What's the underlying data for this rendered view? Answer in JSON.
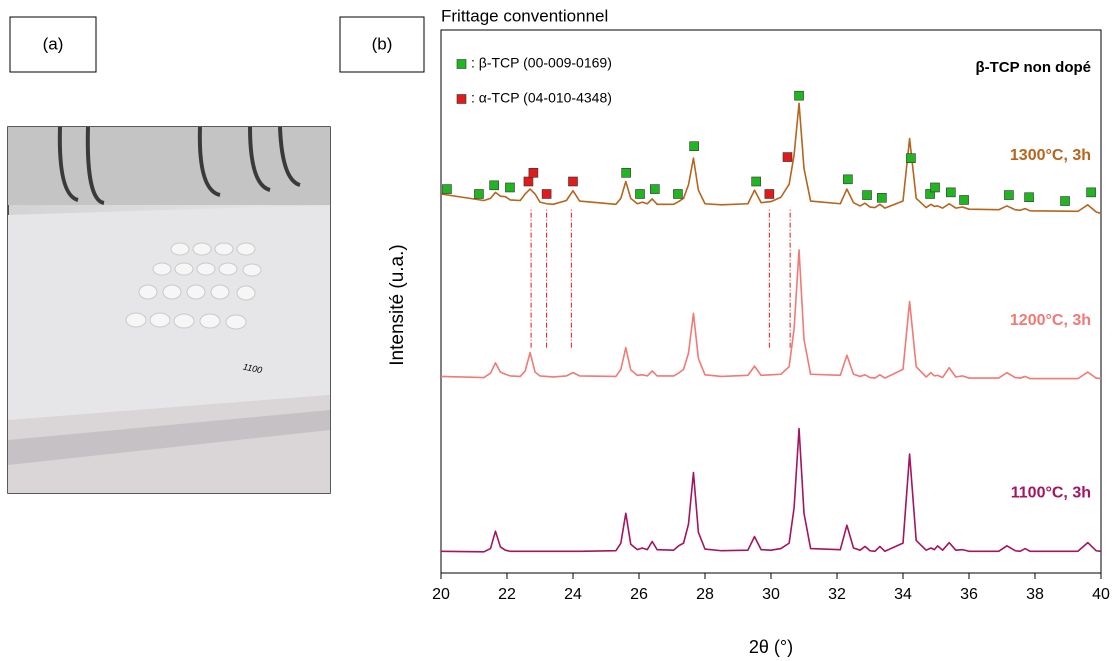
{
  "panel_a": {
    "label": "(a)",
    "marking": "1100"
  },
  "panel_b": {
    "label": "(b)"
  },
  "chart_data": {
    "type": "line",
    "title": "Frittage conventionnel",
    "annotation": "β-TCP non dopé",
    "x_label": "2θ (°)",
    "y_label": "Intensité (u.a.)",
    "xlim": [
      20,
      40
    ],
    "xticks": [
      20,
      22,
      24,
      26,
      28,
      30,
      32,
      34,
      36,
      38,
      40
    ],
    "ylim": [
      0,
      100
    ],
    "x": [
      20,
      21.3,
      21.5,
      21.65,
      21.8,
      21.95,
      22.1,
      22.4,
      22.55,
      22.7,
      22.85,
      23.0,
      23.2,
      23.4,
      23.8,
      24.0,
      24.2,
      25.3,
      25.45,
      25.6,
      25.75,
      25.95,
      26.1,
      26.25,
      26.4,
      26.55,
      27.05,
      27.2,
      27.35,
      27.5,
      27.65,
      27.8,
      28.0,
      28.5,
      29.3,
      29.5,
      29.7,
      30.0,
      30.3,
      30.55,
      30.7,
      30.85,
      31.0,
      31.2,
      32.1,
      32.3,
      32.5,
      32.7,
      32.85,
      33.0,
      33.15,
      33.3,
      33.45,
      34.0,
      34.2,
      34.4,
      34.7,
      34.85,
      34.95,
      35.05,
      35.2,
      35.4,
      35.6,
      35.8,
      36.0,
      36.9,
      37.15,
      37.4,
      37.55,
      37.7,
      37.85,
      39.3,
      39.6,
      39.85,
      40
    ],
    "series": [
      {
        "name": "1300°C, 3h",
        "color": "#b5651d",
        "values": [
          69.8,
          68.6,
          69.0,
          70.1,
          69.4,
          69.3,
          68.7,
          68.6,
          69.8,
          70.7,
          69.8,
          68.3,
          68.0,
          67.9,
          68.6,
          70.4,
          68.5,
          67.9,
          69.0,
          72.1,
          69.0,
          68.0,
          68.3,
          68.0,
          68.9,
          67.9,
          67.9,
          68.4,
          69.0,
          71.5,
          76.4,
          70.5,
          68.0,
          67.8,
          68.0,
          70.5,
          68.2,
          68.4,
          69.2,
          71.6,
          77.0,
          86.5,
          74.5,
          68.5,
          68.0,
          70.7,
          68.2,
          67.6,
          68.1,
          67.4,
          67.3,
          67.9,
          67.2,
          68.5,
          80.0,
          69.0,
          67.3,
          67.9,
          67.5,
          67.6,
          67.2,
          68.0,
          67.2,
          67.4,
          67.0,
          66.9,
          67.6,
          66.9,
          66.8,
          67.1,
          66.7,
          66.6,
          67.8,
          66.5,
          66.2
        ]
      },
      {
        "name": "1200°C, 3h",
        "color": "#f07a76",
        "values": [
          36.2,
          36.0,
          36.8,
          38.7,
          37.0,
          36.6,
          36.3,
          36.2,
          37.2,
          40.6,
          37.0,
          36.3,
          36.2,
          36.1,
          36.3,
          36.9,
          36.3,
          36.2,
          37.5,
          41.5,
          37.4,
          36.4,
          36.5,
          36.3,
          37.2,
          36.3,
          36.3,
          36.8,
          37.5,
          40.5,
          47.8,
          39.5,
          36.5,
          36.2,
          36.4,
          38.1,
          36.4,
          36.5,
          36.6,
          38.0,
          45.0,
          59.5,
          43.0,
          36.6,
          36.4,
          40.1,
          36.6,
          36.2,
          36.5,
          36.0,
          35.9,
          36.5,
          35.9,
          37.5,
          50.0,
          38.0,
          36.1,
          36.9,
          36.3,
          36.4,
          36.0,
          37.8,
          36.1,
          36.3,
          35.9,
          35.9,
          36.9,
          36.0,
          35.9,
          36.2,
          35.8,
          35.8,
          37.0,
          35.9,
          35.8
        ]
      },
      {
        "name": "1100°C, 3h",
        "color": "#a3155f",
        "values": [
          4.0,
          3.9,
          4.5,
          7.7,
          4.8,
          4.2,
          4.0,
          4.0,
          4.0,
          4.0,
          4.0,
          4.0,
          4.0,
          4.0,
          4.0,
          4.0,
          4.0,
          4.1,
          5.5,
          11.0,
          5.3,
          4.3,
          4.6,
          4.3,
          5.8,
          4.3,
          4.2,
          5.0,
          5.5,
          9.0,
          18.5,
          7.5,
          4.4,
          4.1,
          4.2,
          6.7,
          4.3,
          4.2,
          4.5,
          5.5,
          12.0,
          26.6,
          11.0,
          4.5,
          4.3,
          8.8,
          4.6,
          4.2,
          4.9,
          4.1,
          4.0,
          4.9,
          4.0,
          5.5,
          21.9,
          6.0,
          4.2,
          4.6,
          4.3,
          5.0,
          4.2,
          5.6,
          4.2,
          4.3,
          4.0,
          4.0,
          5.0,
          4.1,
          4.0,
          4.5,
          4.0,
          4.0,
          5.6,
          4.1,
          4.0
        ]
      }
    ],
    "markers": [
      {
        "name": ": β-TCP (00-009-0169)",
        "color": "#22b522",
        "x": [
          20.18,
          21.15,
          21.61,
          22.09,
          25.61,
          26.03,
          26.48,
          27.18,
          27.67,
          29.55,
          30.85,
          32.33,
          32.91,
          33.36,
          34.24,
          34.82,
          34.97,
          35.45,
          35.85,
          37.21,
          37.82,
          38.91,
          39.7
        ],
        "y": [
          70.7,
          69.8,
          71.4,
          71.0,
          73.7,
          69.8,
          70.7,
          69.8,
          78.6,
          72.1,
          87.9,
          72.5,
          69.6,
          69.1,
          76.4,
          69.8,
          71.0,
          70.1,
          68.7,
          69.6,
          69.2,
          68.5,
          70.1
        ]
      },
      {
        "name": ": α-TCP (04-010-4348)",
        "color": "#e01b1b",
        "x": [
          22.65,
          22.8,
          23.2,
          24.0,
          29.95,
          30.5
        ],
        "y": [
          72.1,
          73.7,
          69.8,
          72.1,
          69.8,
          76.6
        ]
      }
    ],
    "guides_x": [
      22.73,
      23.2,
      23.95,
      29.95,
      30.58
    ],
    "guides_y": [
      41.5,
      67.3
    ]
  }
}
